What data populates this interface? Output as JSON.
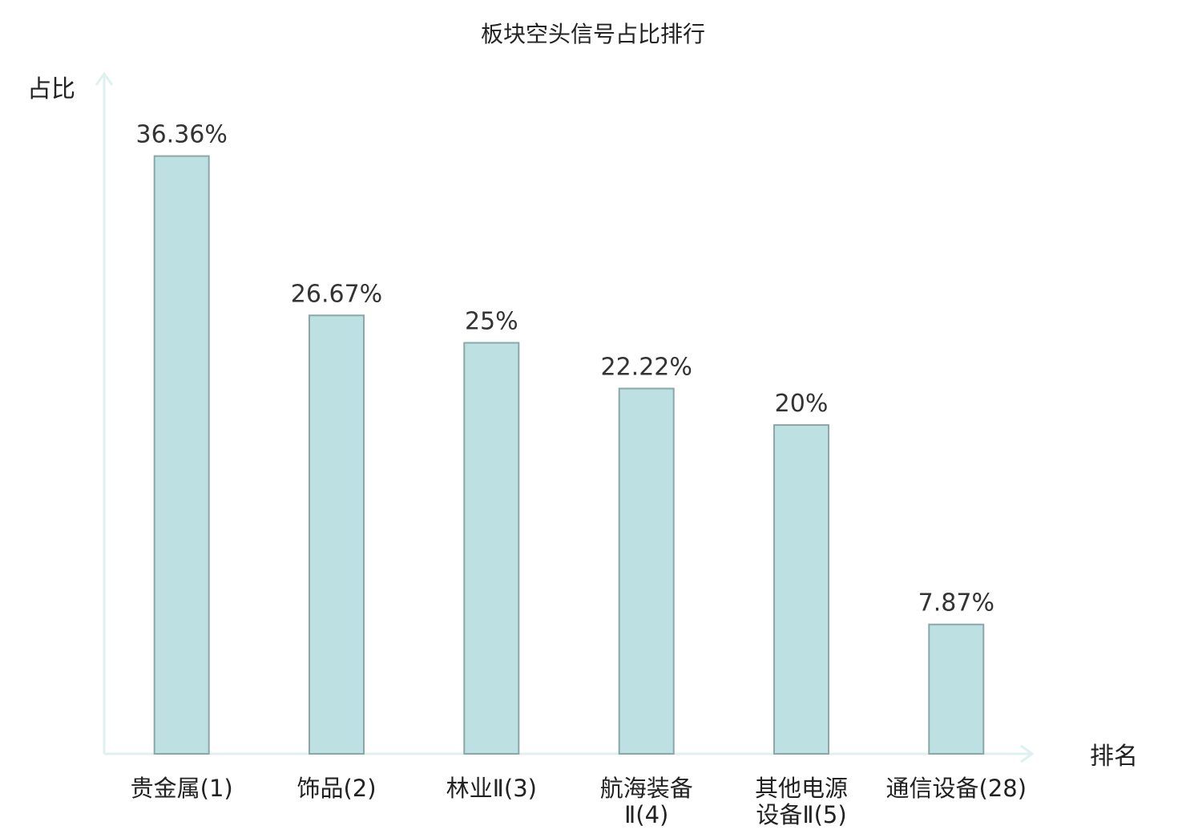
{
  "chart_data": {
    "type": "bar",
    "title": "板块空头信号占比排行",
    "ylabel": "占比",
    "xlabel": "排名",
    "categories": [
      [
        "贵金属(1)"
      ],
      [
        "饰品(2)"
      ],
      [
        "林业Ⅱ(3)"
      ],
      [
        "航海装备",
        "Ⅱ(4)"
      ],
      [
        "其他电源",
        "设备Ⅱ(5)"
      ],
      [
        "通信设备(28)"
      ]
    ],
    "values": [
      36.36,
      26.67,
      25,
      22.22,
      20,
      7.87
    ],
    "value_labels": [
      "36.36%",
      "26.67%",
      "25%",
      "22.22%",
      "20%",
      "7.87%"
    ],
    "highlight_index": 5,
    "ylim": [
      0,
      40
    ],
    "grid": false,
    "legend": "none",
    "colors": {
      "bar_fill": "#bde0e2",
      "bar_stroke": "#8aa7a9",
      "axis": "#dff1ef",
      "text": "#222222",
      "highlight_text": "#e02020"
    }
  }
}
